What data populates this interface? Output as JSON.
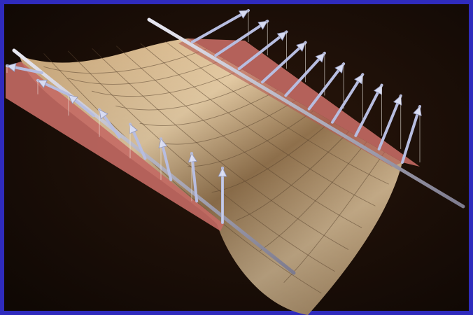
{
  "scene": {
    "subject": "ruled-saddle-surface-with-normal-vectors",
    "colors": {
      "frame": "#2f2bbd",
      "background": "#140b06",
      "surface_light": "#e6caa0",
      "surface_dark": "#8d6d47",
      "ruled_strip": "#c46a64",
      "rod": "#b8b6c8",
      "arrow": "#b7bde0"
    },
    "icons": [
      "arrow-icon",
      "rod-icon"
    ]
  }
}
